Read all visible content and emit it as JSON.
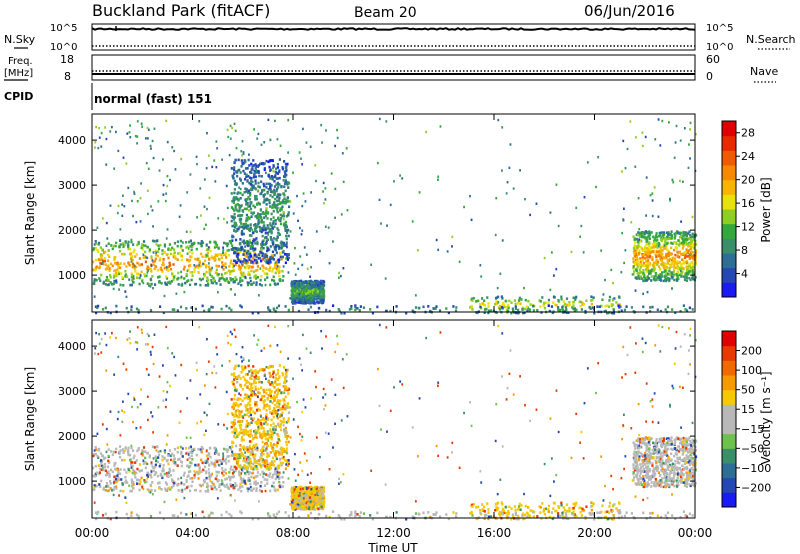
{
  "header": {
    "station": "Buckland Park (fitACF)",
    "beam": "Beam 20",
    "date": "06/Jun/2016"
  },
  "strip_panels": {
    "nsky": {
      "label": "N.Sky",
      "ytick_top": "10^5",
      "ytick_bottom": "10^0"
    },
    "nsearch": {
      "label": "N.Search",
      "ytick_top": "10^5",
      "ytick_bottom": "10^0"
    },
    "freq": {
      "label_line1": "Freq.",
      "label_line2": "[MHz]",
      "ytick_top": "18",
      "ytick_bottom": "8"
    },
    "nave": {
      "label": "Nave",
      "ytick_top": "60",
      "ytick_bottom": "0"
    },
    "cpid": {
      "label": "CPID",
      "value": "normal (fast) 151"
    }
  },
  "chart_data": [
    {
      "type": "heatmap",
      "name": "power",
      "ylabel": "Slant Range [km]",
      "xlabel": "Time UT",
      "xticks": [
        "00:00",
        "04:00",
        "08:00",
        "12:00",
        "16:00",
        "20:00",
        "00:00"
      ],
      "xlim_hours": [
        0,
        24
      ],
      "yticks": [
        "1000",
        "2000",
        "3000",
        "4000"
      ],
      "ylim": [
        180,
        4580
      ],
      "colorbar": {
        "label": "Power [dB]",
        "ticks": [
          "4",
          "8",
          "12",
          "16",
          "20",
          "24",
          "28"
        ],
        "range": [
          0,
          30
        ],
        "colors": [
          "#1a1af5",
          "#2447b4",
          "#2c6e96",
          "#3a8f6b",
          "#34a83c",
          "#8fce23",
          "#e8e10a",
          "#f7b400",
          "#f58a00",
          "#f05a00",
          "#e82a00",
          "#e00000"
        ]
      },
      "regions": [
        {
          "t0": 0.0,
          "t1": 7.6,
          "r0": 800,
          "r1": 1800,
          "peak_db": 22
        },
        {
          "t0": 5.5,
          "t1": 7.8,
          "r0": 1300,
          "r1": 3600,
          "peak_db": 10
        },
        {
          "t0": 7.9,
          "t1": 9.2,
          "r0": 400,
          "r1": 900,
          "peak_db": 12
        },
        {
          "t0": 15.0,
          "t1": 21.0,
          "r0": 180,
          "r1": 550,
          "peak_db": 18
        },
        {
          "t0": 21.5,
          "t1": 24.0,
          "r0": 900,
          "r1": 2000,
          "peak_db": 22
        },
        {
          "t0": 0.0,
          "t1": 24.0,
          "r0": 180,
          "r1": 350,
          "peak_db": 10
        }
      ]
    },
    {
      "type": "heatmap",
      "name": "velocity",
      "ylabel": "Slant Range [km]",
      "xlabel": "Time UT",
      "xticks": [
        "00:00",
        "04:00",
        "08:00",
        "12:00",
        "16:00",
        "20:00",
        "00:00"
      ],
      "xlim_hours": [
        0,
        24
      ],
      "yticks": [
        "1000",
        "2000",
        "3000",
        "4000"
      ],
      "ylim": [
        180,
        4580
      ],
      "colorbar": {
        "label": "Velocity [m s⁻¹]",
        "ticks": [
          "200",
          "100",
          "50",
          "15",
          "−15",
          "−50",
          "−100",
          "−200"
        ],
        "colors": [
          "#1a1af5",
          "#2447b4",
          "#2c6e96",
          "#3a8f6b",
          "#6cc24a",
          "#b8b8b8",
          "#b8b8b8",
          "#f5c800",
          "#f59a00",
          "#f06a00",
          "#e83a00",
          "#e00000"
        ]
      },
      "regions": [
        {
          "t0": 0.0,
          "t1": 7.6,
          "r0": 800,
          "r1": 1800,
          "mean_v": 0
        },
        {
          "t0": 5.5,
          "t1": 7.8,
          "r0": 1300,
          "r1": 3600,
          "mean_v": -40
        },
        {
          "t0": 7.9,
          "t1": 9.2,
          "r0": 400,
          "r1": 900,
          "mean_v": -20
        },
        {
          "t0": 15.0,
          "t1": 21.0,
          "r0": 180,
          "r1": 550,
          "mean_v": -30
        },
        {
          "t0": 21.5,
          "t1": 24.0,
          "r0": 900,
          "r1": 2000,
          "mean_v": 0
        }
      ]
    }
  ]
}
